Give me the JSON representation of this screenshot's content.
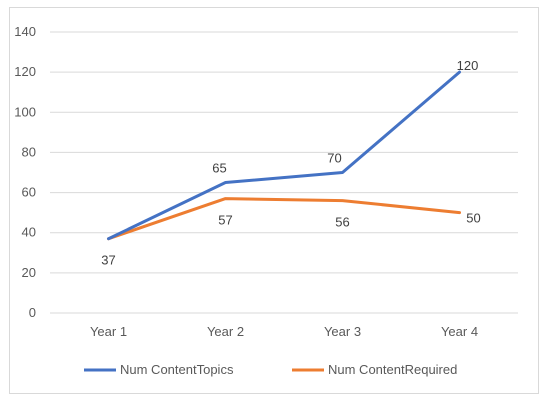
{
  "chart_data": {
    "type": "line",
    "title": "",
    "xlabel": "",
    "ylabel": "",
    "categories": [
      "Year 1",
      "Year 2",
      "Year 3",
      "Year 4"
    ],
    "ylim": [
      0,
      140
    ],
    "yticks": [
      0,
      20,
      40,
      60,
      80,
      100,
      120,
      140
    ],
    "grid": true,
    "legend_position": "bottom",
    "series": [
      {
        "name": "Num ContentTopics",
        "values": [
          37,
          65,
          70,
          120
        ],
        "color": "#4472c4",
        "labels": [
          "37",
          "65",
          "70",
          "120"
        ]
      },
      {
        "name": "Num ContentRequired",
        "values": [
          37,
          57,
          56,
          50
        ],
        "color": "#ed7d31",
        "labels": [
          "",
          "57",
          "56",
          "50"
        ]
      }
    ]
  }
}
